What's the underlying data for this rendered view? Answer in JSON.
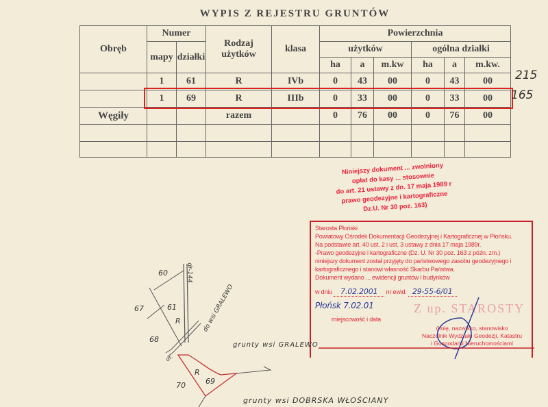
{
  "title": "WYPIS Z REJESTRU GRUNTÓW",
  "headers": {
    "obreb": "Obręb",
    "numer": "Numer",
    "mapy": "mapy",
    "dzialki": "działki",
    "rodzaj": "Rodzaj użytków",
    "klasa": "klasa",
    "powierzchnia": "Powierzchnia",
    "uzytkow": "użytków",
    "ogolna": "ogólna działki",
    "ha": "ha",
    "a": "a",
    "mkw1": "m.kw",
    "mkw2": "m.kw."
  },
  "rows": [
    {
      "obreb": "",
      "mapy": "1",
      "dzialka": "61",
      "rodzaj": "R",
      "klasa": "IVb",
      "u_ha": "0",
      "u_a": "43",
      "u_m": "00",
      "o_ha": "0",
      "o_a": "43",
      "o_m": "00",
      "note": "215"
    },
    {
      "obreb": "",
      "mapy": "1",
      "dzialka": "69",
      "rodzaj": "R",
      "klasa": "IIIb",
      "u_ha": "0",
      "u_a": "33",
      "u_m": "00",
      "o_ha": "0",
      "o_a": "33",
      "o_m": "00",
      "note": "165"
    },
    {
      "obreb": "Węgiły",
      "mapy": "",
      "dzialka": "",
      "rodzaj": "razem",
      "klasa": "",
      "u_ha": "0",
      "u_a": "76",
      "u_m": "00",
      "o_ha": "0",
      "o_a": "76",
      "o_m": "00"
    }
  ],
  "stamp_fee": [
    "Niniejszy dokument ... zwolniony",
    "opłat do kasy ... stosownie",
    "do art. 21 ustawy z dn. 17 maja 1989 r",
    "prawo geodezyjne i kartograficzne",
    "Dz.U. Nr 30 poz. 163)"
  ],
  "stamp_box": {
    "lines": [
      "Starosta Płoński",
      "Powiatowy Ośrodek Dokumentacji Geodezyjnej i Kartograficznej w Płońsku.",
      "Na podstawie art. 40 ust. 2 i ust. 3 ustawy z dnia 17 maja 1989r.",
      "-Prawo geodezyjne i kartograficzne (Dz. U. Nr 30 poz. 163 z późn. zm.)",
      "niniejszy dokument został przyjęty do państwowego zasobu geodezyjnego i",
      "kartograficznego i stanowi własność Skarbu Państwa.",
      "Dokument wydano ... ewidencji gruntów i budynków"
    ],
    "w_dniu": "w dniu",
    "date": "7.02.2001",
    "nr_label": "nr ewid.",
    "nr": "29-55-6/01",
    "place_date": "Płońsk 7.02.01",
    "place_label": "miejscowość i data",
    "zup": "Z up. STAROSTY",
    "sign1": "(imię, nazwisko, stanowisko",
    "sign2": "Naczelnik Wydziału Geodezji, Katastru",
    "sign3": "i Gospodarki Nieruchomościami"
  },
  "map": {
    "parcels": [
      "60",
      "61",
      "67",
      "68",
      "70",
      "69"
    ],
    "r1": "R",
    "r2": "R",
    "road": "dr-144",
    "dr": "dr.",
    "to": "do wsi GRALEWO",
    "g1": "grunty wsi GRALEWO",
    "g2": "grunty wsi DOBRSKA WŁOŚCIANY"
  },
  "colors": {
    "stamp": "#e02b3a",
    "pen": "#2a3a9a",
    "highlight": "#d22222"
  }
}
